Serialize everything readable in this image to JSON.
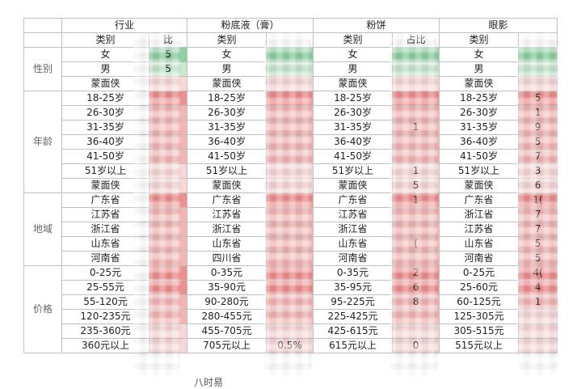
{
  "header_groups": [
    "行业",
    "粉底液（膏）",
    "粉饼",
    "眼影"
  ],
  "sub_header": "类别",
  "left_groups": [
    "性别",
    "年龄",
    "地域",
    "价格"
  ],
  "gender": [
    "女",
    "男",
    "蒙面侠"
  ],
  "age": [
    "18-25岁",
    "26-30岁",
    "31-35岁",
    "36-40岁",
    "41-50岁",
    "51岁以上",
    "蒙面侠"
  ],
  "region": {
    "industry": [
      "广东省",
      "江苏省",
      "浙江省",
      "山东省",
      "河南省"
    ],
    "foundation": [
      "广东省",
      "江苏省",
      "浙江省",
      "山东省",
      "四川省"
    ],
    "powder": [
      "广东省",
      "江苏省",
      "浙江省",
      "山东省",
      "河南省"
    ],
    "eyeshadow": [
      "广东省",
      "浙江省",
      "江苏省",
      "山东省",
      "河南省"
    ]
  },
  "price": {
    "industry": [
      "0-25元",
      "25-55元",
      "55-120元",
      "120-235元",
      "235-360元",
      "360元以上"
    ],
    "foundation": [
      "0-35元",
      "35-90元",
      "90-280元",
      "280-455元",
      "455-705元",
      "705元以上"
    ],
    "powder": [
      "0-35元",
      "35-95元",
      "95-225元",
      "225-425元",
      "425-615元",
      "615元以上"
    ],
    "eyeshadow": [
      "0-25元",
      "25-60元",
      "60-125元",
      "125-305元",
      "305-515元",
      "515元以上"
    ]
  },
  "visible_fragments": {
    "industry_hdr": "比",
    "industry_g1": "5",
    "industry_g2": "5",
    "foundation_last": "0.5%",
    "powder_hdr": "占比",
    "powder_a3": "1",
    "powder_a6": "1",
    "powder_a7": "5",
    "powder_r1": "1",
    "powder_r4": "(",
    "powder_p1": "2",
    "powder_p2": "6",
    "powder_p3": "8",
    "powder_last": "0",
    "eye_a1": "5",
    "eye_a2": "1",
    "eye_a3": "9",
    "eye_a4": "5",
    "eye_a5": "7",
    "eye_a6": "3",
    "eye_a7": "6",
    "eye_r1": "1(",
    "eye_r2": "7",
    "eye_r3": "7",
    "eye_r4": "5",
    "eye_r5": "5",
    "eye_p1": "4(",
    "eye_p2": "4",
    "eye_p3": "1",
    "bottom": "八时易"
  }
}
